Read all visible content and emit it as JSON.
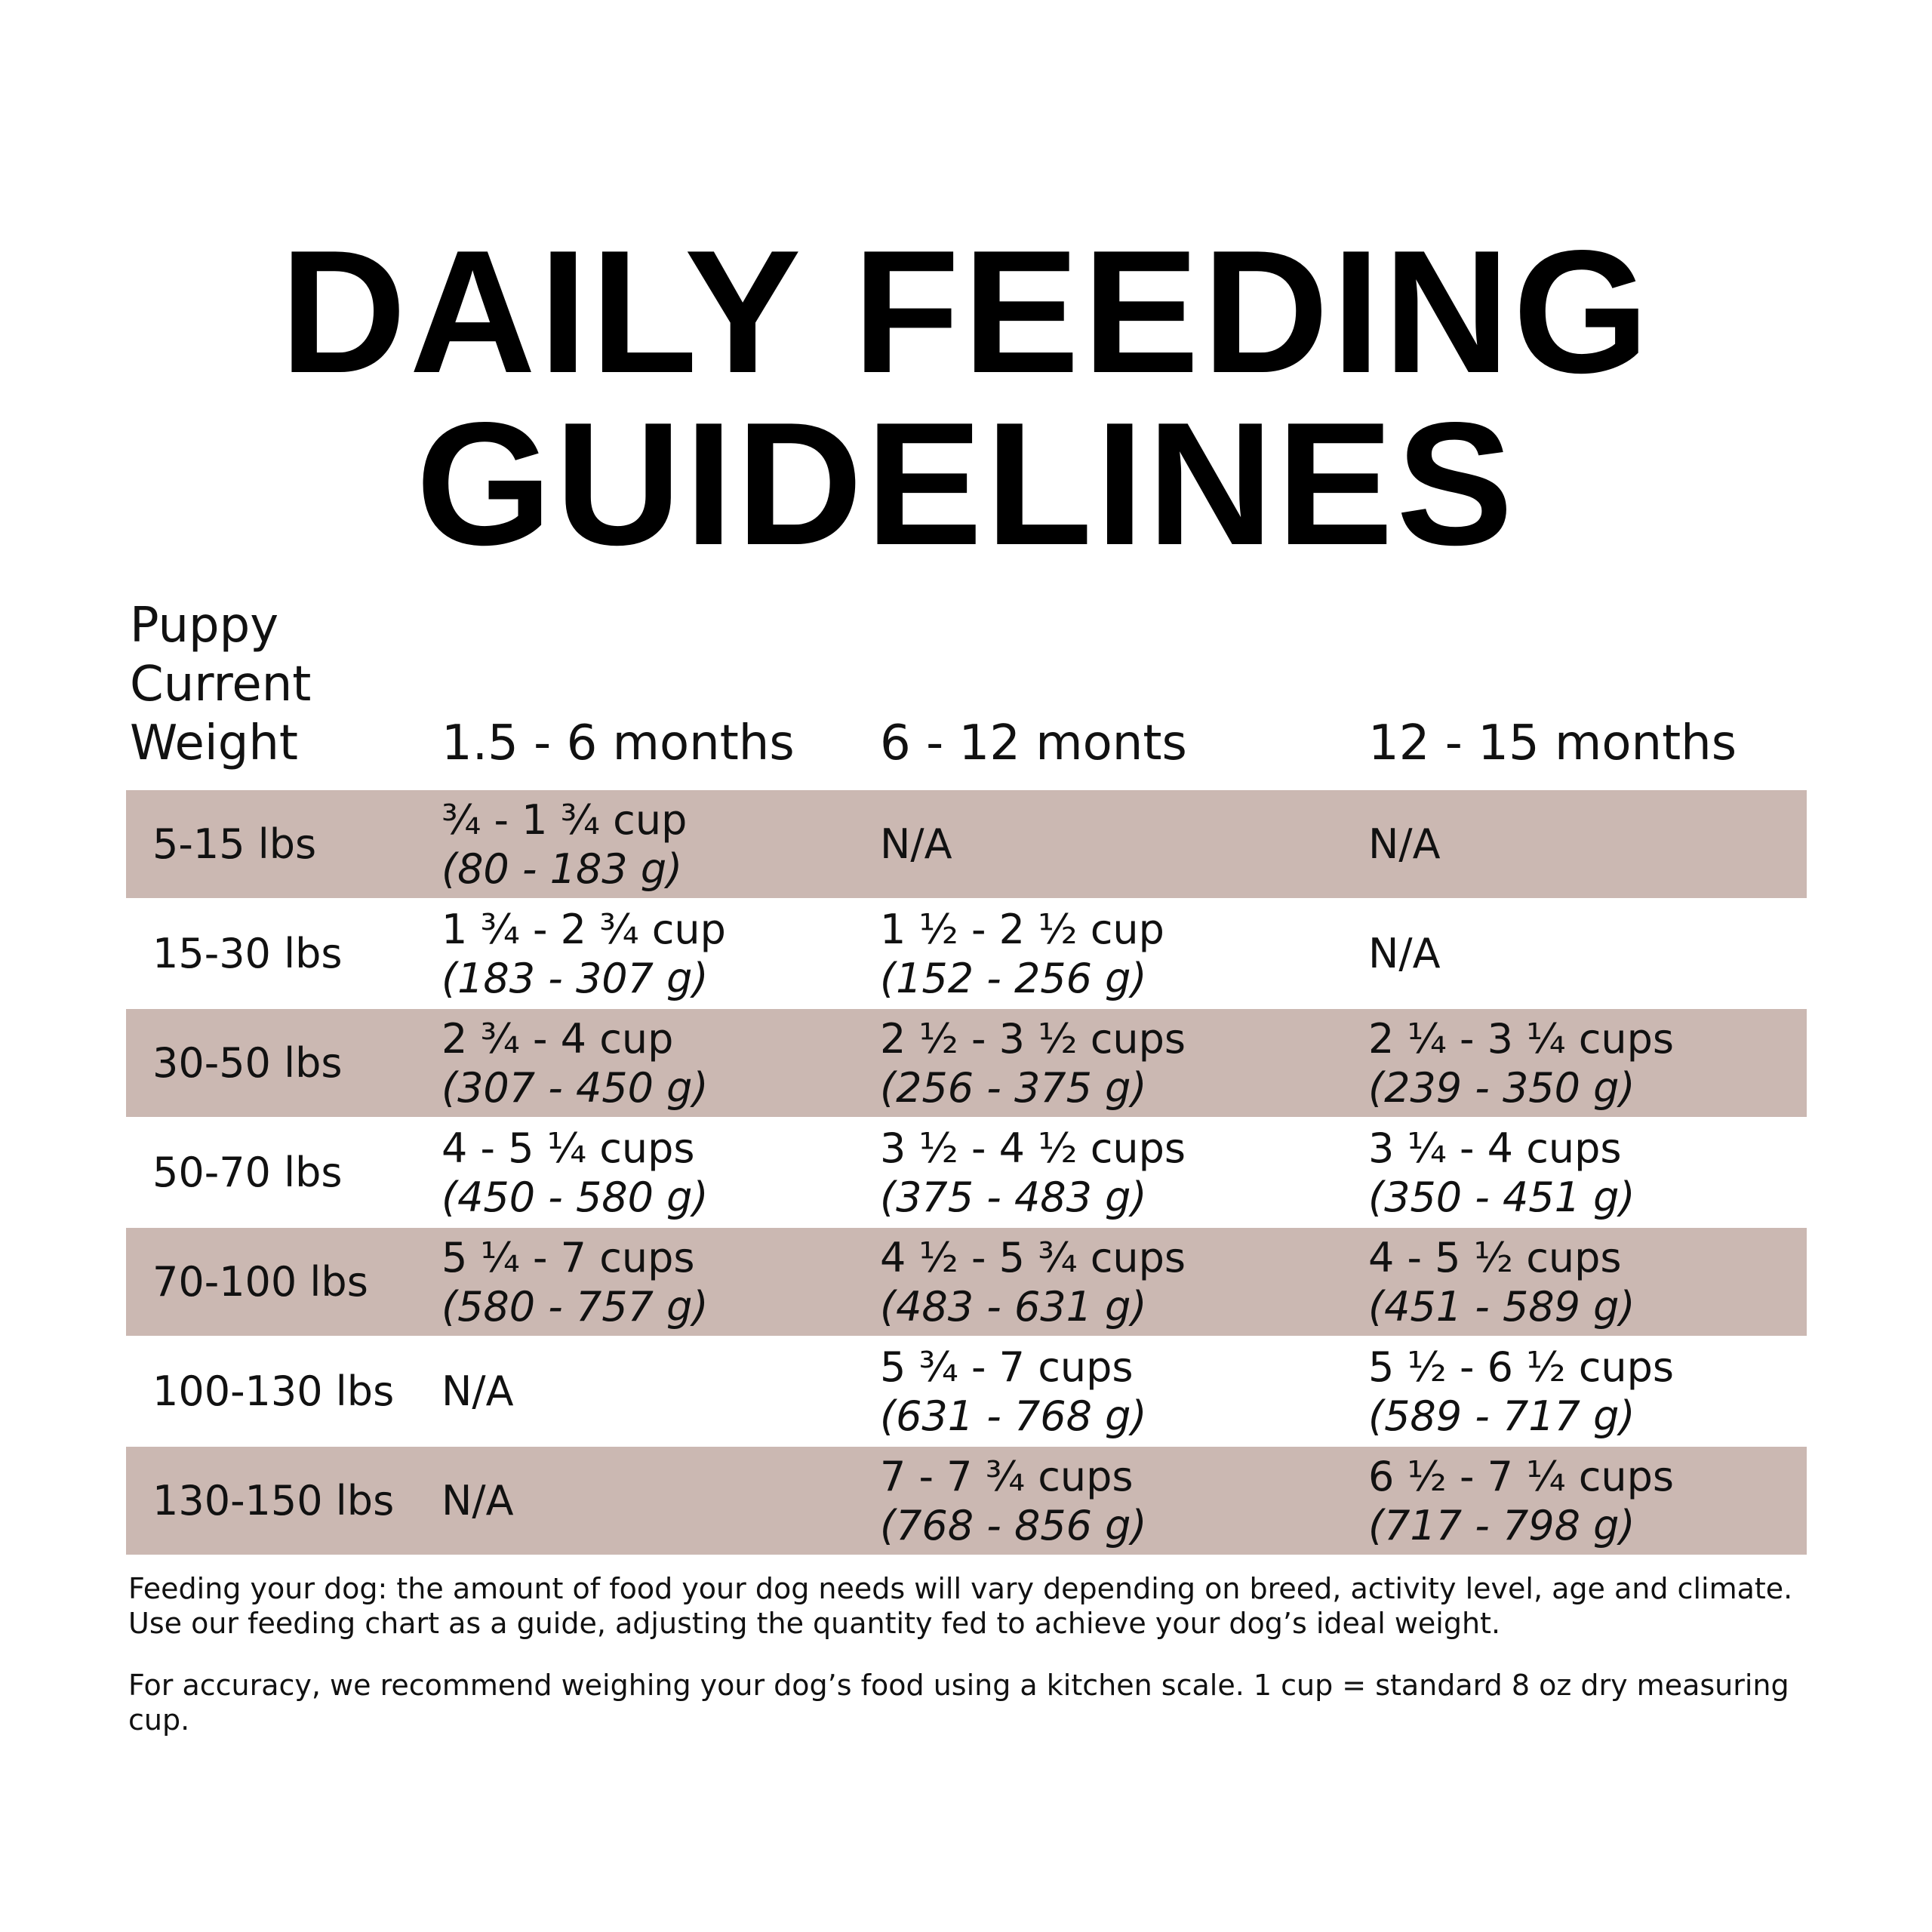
{
  "title": [
    "DAILY FEEDING",
    "GUIDELINES"
  ],
  "table": {
    "weight_header": [
      "Puppy",
      "Current",
      "Weight"
    ],
    "columns": [
      "1.5 - 6 months",
      "6 - 12 monts",
      "12 - 15 months"
    ],
    "rows": [
      {
        "weight": "5-15 lbs",
        "cells": [
          {
            "cup": "¾ - 1 ¾ cup",
            "grams": "(80 - 183 g)"
          },
          {
            "text": "N/A"
          },
          {
            "text": "N/A"
          }
        ]
      },
      {
        "weight": "15-30 lbs",
        "cells": [
          {
            "cup": "1 ¾ - 2 ¾ cup",
            "grams": "(183 - 307 g)"
          },
          {
            "cup": "1 ½ - 2 ½ cup",
            "grams": "(152 - 256 g)"
          },
          {
            "text": "N/A"
          }
        ]
      },
      {
        "weight": "30-50 lbs",
        "cells": [
          {
            "cup": "2 ¾ - 4 cup",
            "grams": "(307 - 450 g)"
          },
          {
            "cup": "2 ½ - 3 ½ cups",
            "grams": "(256 - 375 g)"
          },
          {
            "cup": "2 ¼ - 3 ¼ cups",
            "grams": "(239 - 350 g)"
          }
        ]
      },
      {
        "weight": "50-70 lbs",
        "cells": [
          {
            "cup": "4 - 5 ¼ cups",
            "grams": "(450 - 580 g)"
          },
          {
            "cup": "3 ½ - 4 ½ cups",
            "grams": "(375 - 483 g)"
          },
          {
            "cup": "3 ¼  - 4 cups",
            "grams": "(350 - 451 g)"
          }
        ]
      },
      {
        "weight": "70-100 lbs",
        "cells": [
          {
            "cup": "5 ¼ - 7 cups",
            "grams": "(580 - 757 g)"
          },
          {
            "cup": "4 ½ - 5 ¾ cups",
            "grams": "(483 - 631 g)"
          },
          {
            "cup": "4 - 5 ½ cups",
            "grams": "(451 - 589 g)"
          }
        ]
      },
      {
        "weight": "100-130 lbs",
        "cells": [
          {
            "text": "N/A"
          },
          {
            "cup": "5 ¾ - 7 cups",
            "grams": "(631 - 768 g)"
          },
          {
            "cup": "5 ½ - 6 ½ cups",
            "grams": "(589 - 717 g)"
          }
        ]
      },
      {
        "weight": "130-150 lbs",
        "cells": [
          {
            "text": "N/A"
          },
          {
            "cup": "7 - 7 ¾ cups",
            "grams": "(768 - 856 g)"
          },
          {
            "cup": "6 ½ - 7 ¼ cups",
            "grams": "(717 - 798 g)"
          }
        ]
      }
    ]
  },
  "footer": [
    "Feeding your dog: the amount of food your dog needs will vary depending on breed, activity level, age and climate. Use our feeding chart as a guide, adjusting the quantity fed to achieve your dog’s ideal weight.",
    "For accuracy, we recommend weighing your dog’s food using a kitchen scale. 1 cup = standard 8 oz dry measuring cup."
  ]
}
